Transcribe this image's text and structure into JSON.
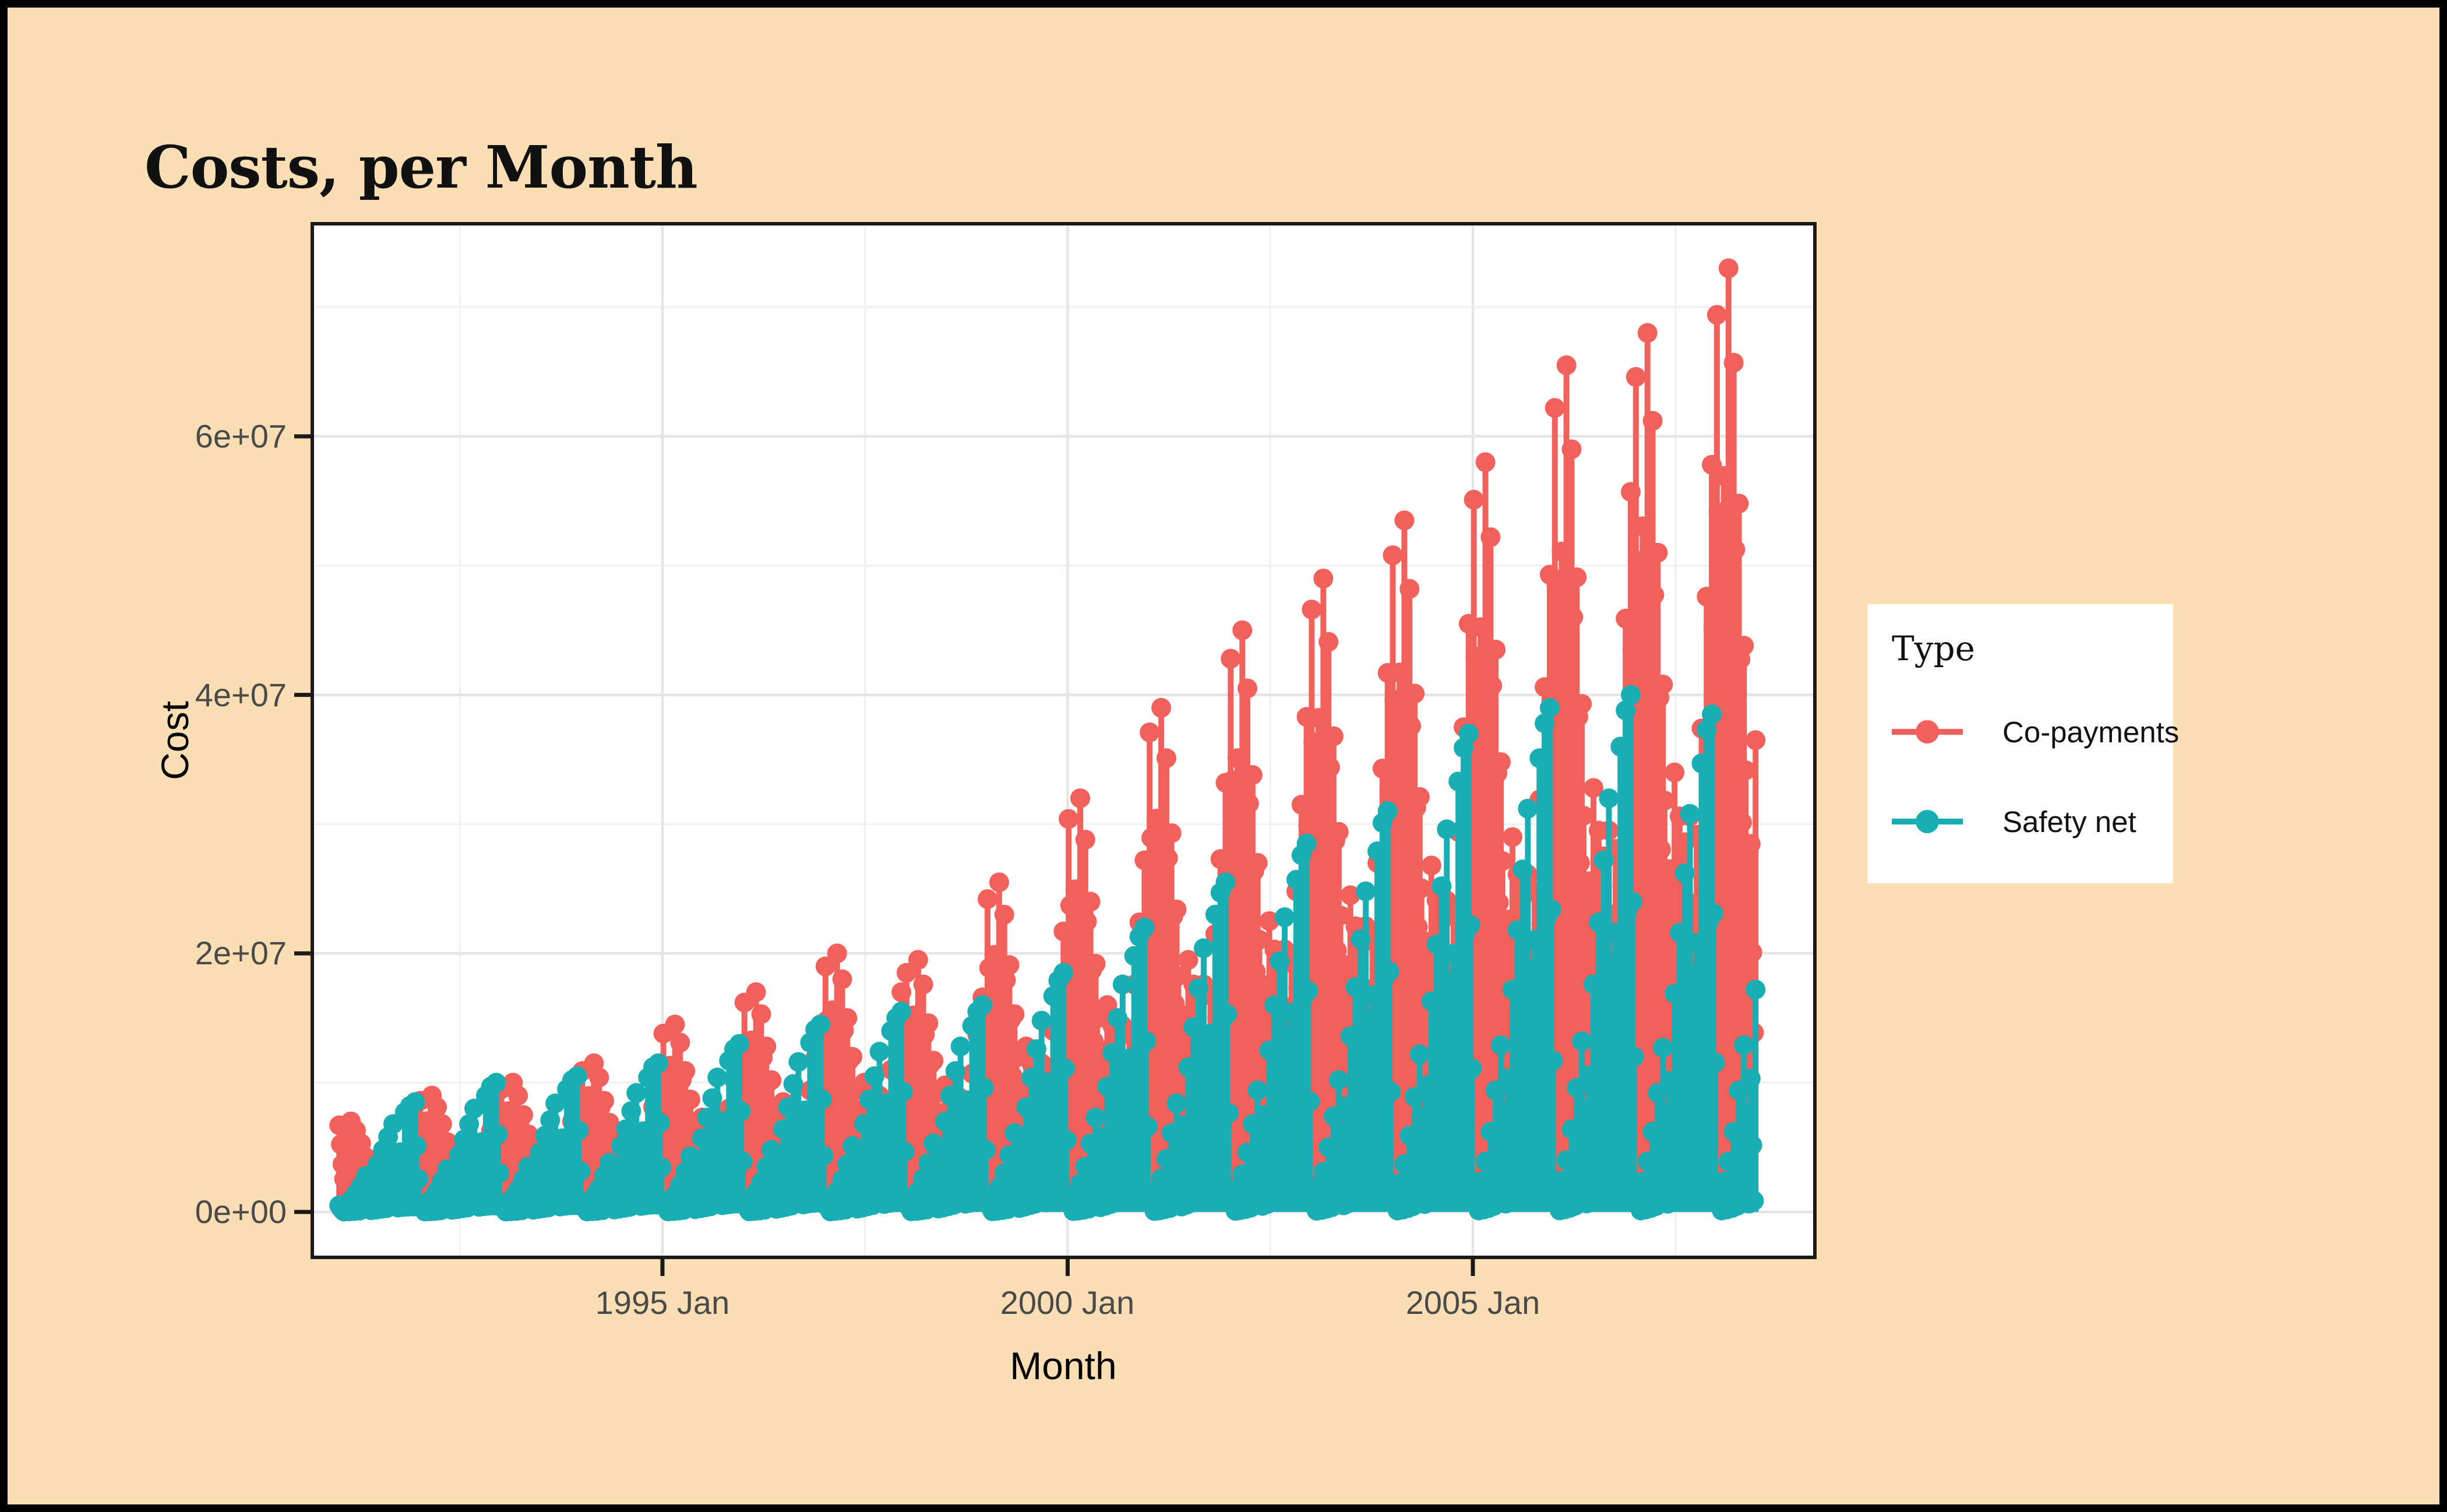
{
  "title": "Costs, per Month",
  "colors": {
    "background": "#FCDEB5",
    "frame_border": "#000000",
    "panel_background": "#FFFFFF",
    "panel_border": "#1a1a1a",
    "grid_major": "#E5E5E5",
    "grid_minor": "#EFEFEF",
    "tick_mark": "#1a1a1a",
    "tick_label": "#4a4a4a",
    "co_payments": "#F2605C",
    "safety_net": "#18AEB4"
  },
  "legend": {
    "title": "Type",
    "items": [
      {
        "label": "Co-payments",
        "color": "#F2605C"
      },
      {
        "label": "Safety net",
        "color": "#18AEB4"
      }
    ]
  },
  "chart_data": {
    "type": "lollipop-stem",
    "title": "Costs, per Month",
    "xlabel": "Month",
    "ylabel": "Cost",
    "x_axis": {
      "tick_labels": [
        "1995 Jan",
        "2000 Jan",
        "2005 Jan"
      ],
      "tick_years": [
        1995,
        2000,
        2005
      ],
      "minor_gridline_years": [
        1992.5,
        1997.5,
        2002.5,
        2007.5
      ],
      "range_years": [
        1990.67,
        2009.22
      ],
      "data_span_years": [
        1991.0,
        2008.5
      ]
    },
    "y_axis": {
      "tick_labels": [
        "0e+00",
        "2e+07",
        "4e+07",
        "6e+07"
      ],
      "tick_values_e7": [
        0,
        2,
        4,
        6
      ],
      "minor_gridline_values_e7": [
        1,
        3,
        5,
        7
      ],
      "range_e7": [
        -0.37,
        7.62
      ],
      "unit": "1e7 (values below are in units of 1e7, matching axis labels)"
    },
    "series_meta": [
      {
        "key": "co_payments",
        "name": "Co-payments",
        "color": "#F2605C"
      },
      {
        "key": "safety_net",
        "name": "Safety net",
        "color": "#18AEB4"
      }
    ],
    "resolution_note": "monthly peak envelope read from dense daily lollipop cloud; co-payments spike Jan-Mar each year, safety net ramps to a December peak then resets",
    "texture": {
      "month_offsets": [
        -0.36,
        -0.12,
        0.12,
        0.36
      ],
      "levels": {
        "co_payments": [
          1.0,
          0.78,
          0.55,
          0.38
        ],
        "safety_net": [
          1.0,
          0.6,
          0.3,
          0.05
        ]
      }
    },
    "years": [
      {
        "year": 1991,
        "co_payments": [
          0.67,
          0.7,
          0.63,
          0.53,
          0.42,
          0.35,
          0.32,
          0.29,
          0.32,
          0.39,
          0.49,
          0.6
        ],
        "safety_net": [
          0.05,
          0.09,
          0.14,
          0.2,
          0.28,
          0.37,
          0.48,
          0.58,
          0.68,
          0.77,
          0.82,
          0.85
        ]
      },
      {
        "year": 1992,
        "co_payments": [
          0.86,
          0.9,
          0.81,
          0.68,
          0.54,
          0.45,
          0.41,
          0.38,
          0.41,
          0.5,
          0.63,
          0.77
        ],
        "safety_net": [
          0.06,
          0.1,
          0.16,
          0.24,
          0.33,
          0.44,
          0.56,
          0.68,
          0.8,
          0.9,
          0.97,
          1.0
        ]
      },
      {
        "year": 1993,
        "co_payments": [
          0.95,
          1.0,
          0.9,
          0.75,
          0.6,
          0.5,
          0.45,
          0.42,
          0.45,
          0.55,
          0.7,
          0.85
        ],
        "safety_net": [
          0.06,
          0.11,
          0.17,
          0.25,
          0.35,
          0.46,
          0.59,
          0.71,
          0.84,
          0.95,
          1.02,
          1.05
        ]
      },
      {
        "year": 1994,
        "co_payments": [
          1.09,
          1.15,
          1.04,
          0.86,
          0.69,
          0.58,
          0.52,
          0.48,
          0.52,
          0.63,
          0.81,
          0.98
        ],
        "safety_net": [
          0.07,
          0.12,
          0.18,
          0.28,
          0.38,
          0.51,
          0.64,
          0.78,
          0.92,
          1.04,
          1.12,
          1.15
        ]
      },
      {
        "year": 1995,
        "co_payments": [
          1.38,
          1.45,
          1.31,
          1.09,
          0.87,
          0.73,
          0.65,
          0.61,
          0.65,
          0.8,
          1.02,
          1.23
        ],
        "safety_net": [
          0.08,
          0.13,
          0.21,
          0.31,
          0.43,
          0.57,
          0.73,
          0.88,
          1.04,
          1.17,
          1.26,
          1.3
        ]
      },
      {
        "year": 1996,
        "co_payments": [
          1.62,
          1.7,
          1.53,
          1.28,
          1.02,
          0.85,
          0.77,
          0.71,
          0.77,
          0.94,
          1.19,
          1.45
        ],
        "safety_net": [
          0.09,
          0.15,
          0.23,
          0.35,
          0.48,
          0.64,
          0.81,
          0.99,
          1.16,
          1.31,
          1.41,
          1.45
        ]
      },
      {
        "year": 1997,
        "co_payments": [
          1.9,
          2.0,
          1.8,
          1.5,
          1.2,
          1.0,
          0.9,
          0.84,
          0.9,
          1.1,
          1.4,
          1.7
        ],
        "safety_net": [
          0.09,
          0.16,
          0.25,
          0.37,
          0.51,
          0.68,
          0.87,
          1.05,
          1.24,
          1.4,
          1.5,
          1.55
        ]
      },
      {
        "year": 1998,
        "co_payments": [
          1.85,
          1.95,
          1.76,
          1.46,
          1.17,
          0.98,
          0.88,
          0.82,
          0.88,
          1.07,
          1.37,
          1.66
        ],
        "safety_net": [
          0.1,
          0.16,
          0.26,
          0.38,
          0.53,
          0.7,
          0.9,
          1.09,
          1.28,
          1.44,
          1.55,
          1.6
        ]
      },
      {
        "year": 1999,
        "co_payments": [
          2.42,
          2.55,
          2.3,
          1.91,
          1.53,
          1.28,
          1.15,
          1.07,
          1.15,
          1.4,
          1.79,
          2.17
        ],
        "safety_net": [
          0.11,
          0.19,
          0.3,
          0.44,
          0.61,
          0.81,
          1.04,
          1.26,
          1.48,
          1.67,
          1.79,
          1.85
        ]
      },
      {
        "year": 2000,
        "co_payments": [
          3.04,
          3.2,
          2.88,
          2.4,
          1.92,
          1.6,
          1.44,
          1.34,
          1.44,
          1.76,
          2.24,
          2.72
        ],
        "safety_net": [
          0.13,
          0.22,
          0.35,
          0.53,
          0.73,
          0.97,
          1.23,
          1.5,
          1.76,
          1.98,
          2.13,
          2.2
        ]
      },
      {
        "year": 2001,
        "co_payments": [
          3.71,
          3.9,
          3.51,
          2.93,
          2.34,
          1.95,
          1.76,
          1.64,
          1.76,
          2.15,
          2.73,
          3.32
        ],
        "safety_net": [
          0.15,
          0.26,
          0.41,
          0.61,
          0.84,
          1.12,
          1.43,
          1.73,
          2.04,
          2.3,
          2.47,
          2.55
        ]
      },
      {
        "year": 2002,
        "co_payments": [
          4.28,
          4.5,
          4.05,
          3.38,
          2.7,
          2.25,
          2.03,
          1.89,
          2.03,
          2.48,
          3.15,
          3.83
        ],
        "safety_net": [
          0.17,
          0.29,
          0.46,
          0.68,
          0.94,
          1.25,
          1.6,
          1.94,
          2.28,
          2.57,
          2.76,
          2.85
        ]
      },
      {
        "year": 2003,
        "co_payments": [
          4.66,
          4.9,
          4.41,
          3.68,
          2.94,
          2.45,
          2.21,
          2.06,
          2.21,
          2.7,
          3.43,
          4.17
        ],
        "safety_net": [
          0.19,
          0.31,
          0.5,
          0.74,
          1.02,
          1.36,
          1.74,
          2.11,
          2.48,
          2.79,
          3.01,
          3.1
        ]
      },
      {
        "year": 2004,
        "co_payments": [
          5.08,
          5.35,
          4.82,
          4.01,
          3.21,
          2.68,
          2.41,
          2.25,
          2.41,
          2.94,
          3.75,
          4.55
        ],
        "safety_net": [
          0.22,
          0.37,
          0.59,
          0.89,
          1.22,
          1.63,
          2.07,
          2.52,
          2.96,
          3.33,
          3.59,
          3.7
        ]
      },
      {
        "year": 2005,
        "co_payments": [
          5.51,
          5.8,
          5.22,
          4.35,
          3.48,
          2.9,
          2.61,
          2.44,
          2.61,
          3.19,
          4.06,
          4.93
        ],
        "safety_net": [
          0.23,
          0.39,
          0.62,
          0.94,
          1.29,
          1.72,
          2.18,
          2.65,
          3.12,
          3.51,
          3.78,
          3.9
        ]
      },
      {
        "year": 2006,
        "co_payments": [
          6.22,
          6.55,
          5.9,
          4.91,
          3.93,
          3.28,
          2.95,
          2.75,
          2.95,
          3.6,
          4.59,
          5.57
        ],
        "safety_net": [
          0.24,
          0.4,
          0.64,
          0.96,
          1.32,
          1.76,
          2.24,
          2.72,
          3.2,
          3.6,
          3.88,
          4.0
        ]
      },
      {
        "year": 2007,
        "co_payments": [
          6.46,
          6.8,
          6.12,
          5.1,
          4.08,
          3.4,
          3.06,
          2.86,
          3.06,
          3.74,
          4.76,
          5.78
        ],
        "safety_net": [
          0.23,
          0.39,
          0.62,
          0.92,
          1.27,
          1.69,
          2.16,
          2.62,
          3.08,
          3.47,
          3.73,
          3.85
        ]
      },
      {
        "year": 2008,
        "co_payments": [
          6.94,
          7.3,
          6.57,
          5.48,
          4.38,
          3.65
        ],
        "safety_net": [
          0.23,
          0.39,
          0.62,
          0.94,
          1.29,
          1.72
        ]
      }
    ]
  }
}
